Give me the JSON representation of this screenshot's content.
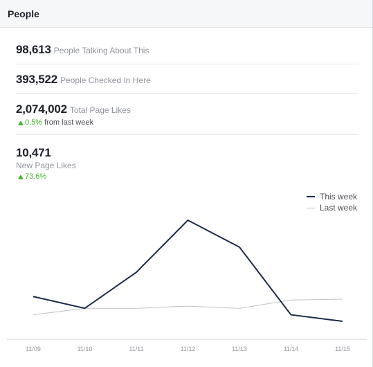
{
  "header": {
    "title": "People"
  },
  "stats": [
    {
      "value": "98,613",
      "label": "People Talking About This"
    },
    {
      "value": "393,522",
      "label": "People Checked In Here"
    },
    {
      "value": "2,074,002",
      "label": "Total Page Likes",
      "change": "0.5%",
      "change_label": "from last week"
    },
    {
      "value": "10,471",
      "label": "New Page Likes",
      "change": "73.6%"
    }
  ],
  "colors": {
    "this_week": "#1c2a4a",
    "last_week": "#bec2c9",
    "positive": "#42b72a"
  },
  "chart_data": {
    "type": "line",
    "categories": [
      "11/09",
      "11/10",
      "11/11",
      "11/12",
      "11/13",
      "11/14",
      "11/15"
    ],
    "series": [
      {
        "name": "This week",
        "values": [
          1990,
          1720,
          2550,
          3750,
          3130,
          1570,
          1420
        ]
      },
      {
        "name": "Last week",
        "values": [
          1570,
          1720,
          1720,
          1770,
          1720,
          1910,
          1930
        ]
      }
    ],
    "legend_position": "top-right",
    "grid": false
  }
}
